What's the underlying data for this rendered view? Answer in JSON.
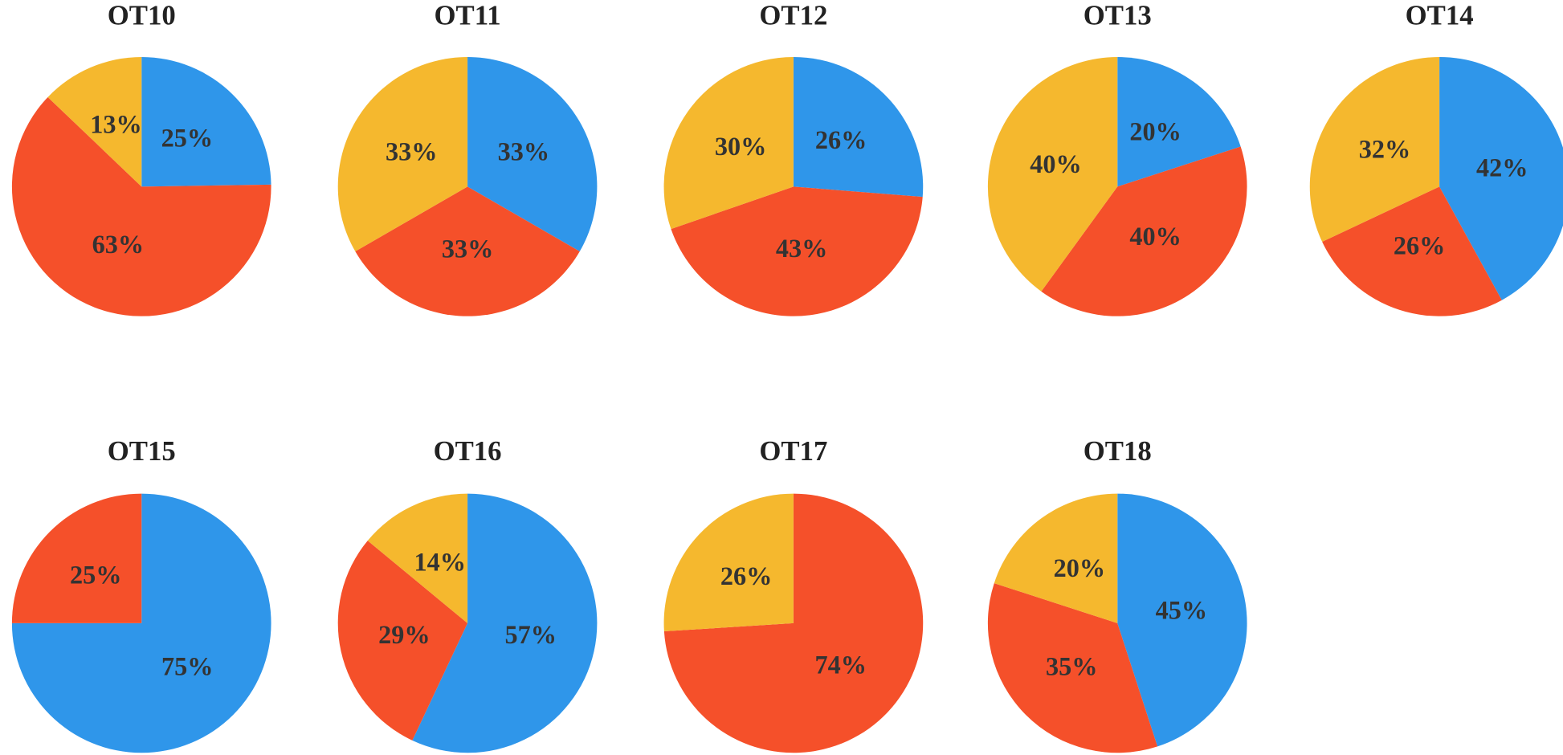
{
  "chart_data": [
    {
      "type": "pie",
      "title": "OT10",
      "values": [
        25,
        63,
        13
      ],
      "value_labels": [
        "25%",
        "63%",
        "13%"
      ],
      "colors": [
        "#2f96ea",
        "#f5502a",
        "#f5b82e"
      ]
    },
    {
      "type": "pie",
      "title": "OT11",
      "values": [
        33,
        33,
        33
      ],
      "value_labels": [
        "33%",
        "33%",
        "33%"
      ],
      "colors": [
        "#2f96ea",
        "#f5502a",
        "#f5b82e"
      ]
    },
    {
      "type": "pie",
      "title": "OT12",
      "values": [
        26,
        43,
        30
      ],
      "value_labels": [
        "26%",
        "43%",
        "30%"
      ],
      "colors": [
        "#2f96ea",
        "#f5502a",
        "#f5b82e"
      ]
    },
    {
      "type": "pie",
      "title": "OT13",
      "values": [
        20,
        40,
        40
      ],
      "value_labels": [
        "20%",
        "40%",
        "40%"
      ],
      "colors": [
        "#2f96ea",
        "#f5502a",
        "#f5b82e"
      ]
    },
    {
      "type": "pie",
      "title": "OT14",
      "values": [
        42,
        26,
        32
      ],
      "value_labels": [
        "42%",
        "26%",
        "32%"
      ],
      "colors": [
        "#2f96ea",
        "#f5502a",
        "#f5b82e"
      ]
    },
    {
      "type": "pie",
      "title": "OT15",
      "values": [
        75,
        25
      ],
      "value_labels": [
        "75%",
        "25%"
      ],
      "colors": [
        "#2f96ea",
        "#f5502a"
      ]
    },
    {
      "type": "pie",
      "title": "OT16",
      "values": [
        57,
        29,
        14
      ],
      "value_labels": [
        "57%",
        "29%",
        "14%"
      ],
      "colors": [
        "#2f96ea",
        "#f5502a",
        "#f5b82e"
      ]
    },
    {
      "type": "pie",
      "title": "OT17",
      "values": [
        74,
        26
      ],
      "value_labels": [
        "74%",
        "26%"
      ],
      "colors": [
        "#f5502a",
        "#f5b82e"
      ]
    },
    {
      "type": "pie",
      "title": "OT18",
      "values": [
        45,
        35,
        20
      ],
      "value_labels": [
        "45%",
        "35%",
        "20%"
      ],
      "colors": [
        "#2f96ea",
        "#f5502a",
        "#f5b82e"
      ]
    }
  ]
}
